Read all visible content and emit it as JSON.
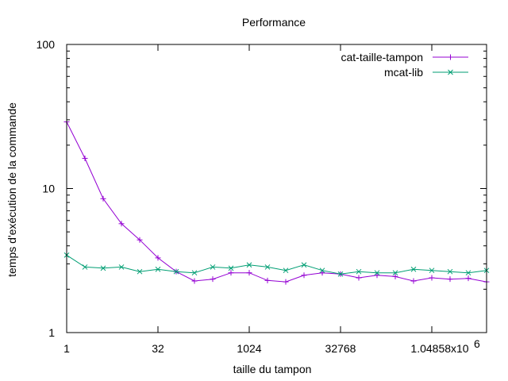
{
  "chart_data": {
    "type": "line",
    "title": "Performance",
    "xlabel": "taille du tampon",
    "ylabel": "temps d'exécution de la commande",
    "x_scale": "log2",
    "y_scale": "log10",
    "xlim": [
      1,
      8388608
    ],
    "ylim": [
      1,
      100
    ],
    "x_ticks": [
      {
        "value": 1,
        "label": "1"
      },
      {
        "value": 32,
        "label": "32"
      },
      {
        "value": 1024,
        "label": "1024"
      },
      {
        "value": 32768,
        "label": "32768"
      },
      {
        "value": 1048576,
        "label": "1.04858x10",
        "exponent": "6"
      }
    ],
    "y_ticks": [
      {
        "value": 1,
        "label": "1"
      },
      {
        "value": 10,
        "label": "10"
      },
      {
        "value": 100,
        "label": "100"
      }
    ],
    "legend_position": "top-right",
    "series": [
      {
        "name": "cat-taille-tampon",
        "color": "#9400d3",
        "marker": "plus",
        "x": [
          1,
          2,
          4,
          8,
          16,
          32,
          64,
          128,
          256,
          512,
          1024,
          2048,
          4096,
          8192,
          16384,
          32768,
          65536,
          131072,
          262144,
          524288,
          1048576,
          2097152,
          4194304,
          8388608
        ],
        "y": [
          29,
          16.2,
          8.5,
          5.7,
          4.4,
          3.3,
          2.65,
          2.28,
          2.35,
          2.6,
          2.6,
          2.3,
          2.25,
          2.5,
          2.6,
          2.55,
          2.4,
          2.5,
          2.45,
          2.28,
          2.4,
          2.35,
          2.38,
          2.25
        ]
      },
      {
        "name": "mcat-lib",
        "color": "#009e73",
        "marker": "cross",
        "x": [
          1,
          2,
          4,
          8,
          16,
          32,
          64,
          128,
          256,
          512,
          1024,
          2048,
          4096,
          8192,
          16384,
          32768,
          65536,
          131072,
          262144,
          524288,
          1048576,
          2097152,
          4194304,
          8388608
        ],
        "y": [
          3.45,
          2.85,
          2.8,
          2.85,
          2.65,
          2.75,
          2.65,
          2.6,
          2.85,
          2.8,
          2.95,
          2.85,
          2.7,
          2.95,
          2.7,
          2.55,
          2.65,
          2.6,
          2.6,
          2.75,
          2.7,
          2.65,
          2.6,
          2.7
        ]
      }
    ]
  }
}
